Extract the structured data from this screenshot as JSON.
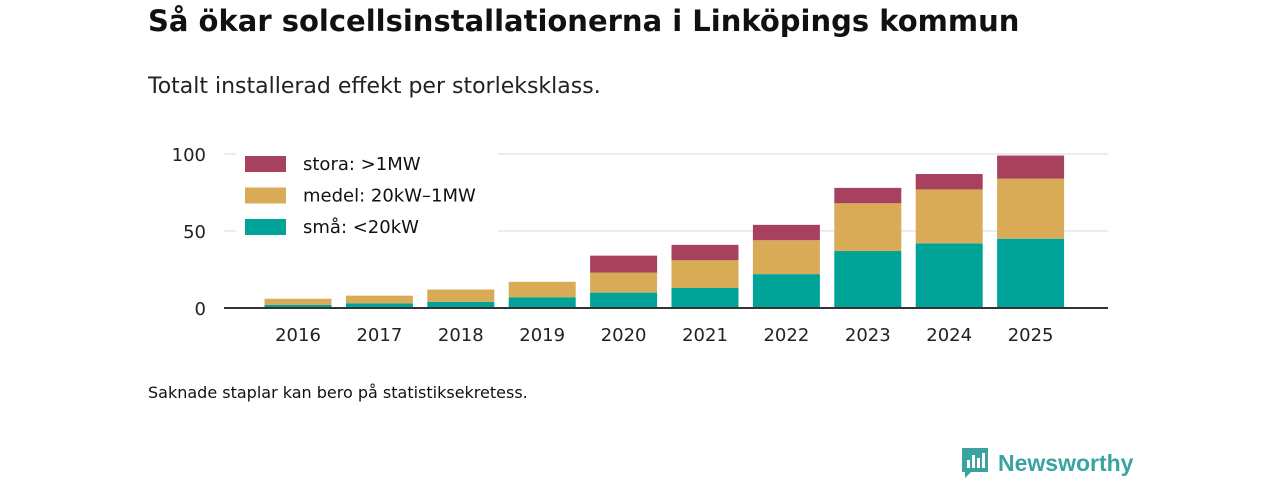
{
  "title": "Så ökar solcellsinstallationerna i Linköpings kommun",
  "subtitle": "Totalt installerad effekt per storleksklass.",
  "footnote": "Saknade staplar kan bero på statistiksekretess.",
  "brand": {
    "name": "Newsworthy",
    "icon": "newsworthy-logo-icon",
    "color": "#3aa3a0"
  },
  "colors": {
    "text": "#111111",
    "grid": "#d9d9d9",
    "axis": "#333333"
  },
  "chart_data": {
    "type": "bar",
    "stacked": true,
    "categories": [
      "2016",
      "2017",
      "2018",
      "2019",
      "2020",
      "2021",
      "2022",
      "2023",
      "2024",
      "2025"
    ],
    "series": [
      {
        "name": "små: <20kW",
        "color": "#00a398",
        "values": [
          2,
          3,
          4,
          7,
          10,
          13,
          22,
          37,
          42,
          45
        ]
      },
      {
        "name": "medel: 20kW–1MW",
        "color": "#d9ab57",
        "values": [
          4,
          5,
          8,
          10,
          13,
          18,
          22,
          31,
          35,
          39
        ]
      },
      {
        "name": "stora: >1MW",
        "color": "#a8415e",
        "values": [
          0,
          0,
          0,
          0,
          11,
          10,
          10,
          10,
          10,
          15
        ]
      }
    ],
    "legend_order": [
      "stora: >1MW",
      "medel: 20kW–1MW",
      "små: <20kW"
    ],
    "yticks": [
      0,
      50,
      100
    ],
    "ylim": [
      0,
      100
    ],
    "grid": true,
    "legend_position": "top-left",
    "xlabel": "",
    "ylabel": ""
  }
}
